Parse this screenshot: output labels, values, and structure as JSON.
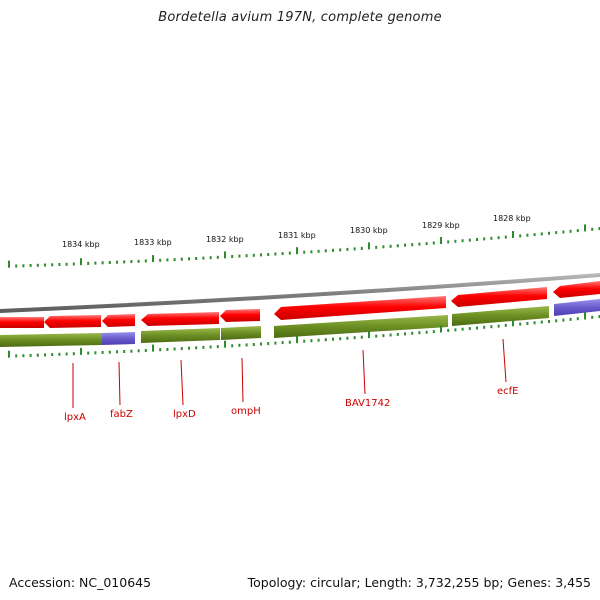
{
  "title": "Bordetella avium 197N, complete genome",
  "footer": {
    "accession": "Accession: NC_010645",
    "summary": "Topology: circular; Length: 3,732,255 bp; Genes: 3,455"
  },
  "colors": {
    "forward_gene": "#ff0000",
    "reverse_gene": "#ff0000",
    "cds_track": "#6b8e23",
    "rna_track": "#6a5acd",
    "backbone": "#808080",
    "ticks": "#2e8b2e",
    "gene_label": "#cc0000"
  },
  "scale": {
    "unit": "kbp",
    "labels": [
      "1834 kbp",
      "1833 kbp",
      "1832 kbp",
      "1831 kbp",
      "1830 kbp",
      "1829 kbp",
      "1828 kbp"
    ]
  },
  "gene_labels": [
    "lpxA",
    "fabZ",
    "lpxD",
    "ompH",
    "BAV1742",
    "ecfE"
  ]
}
